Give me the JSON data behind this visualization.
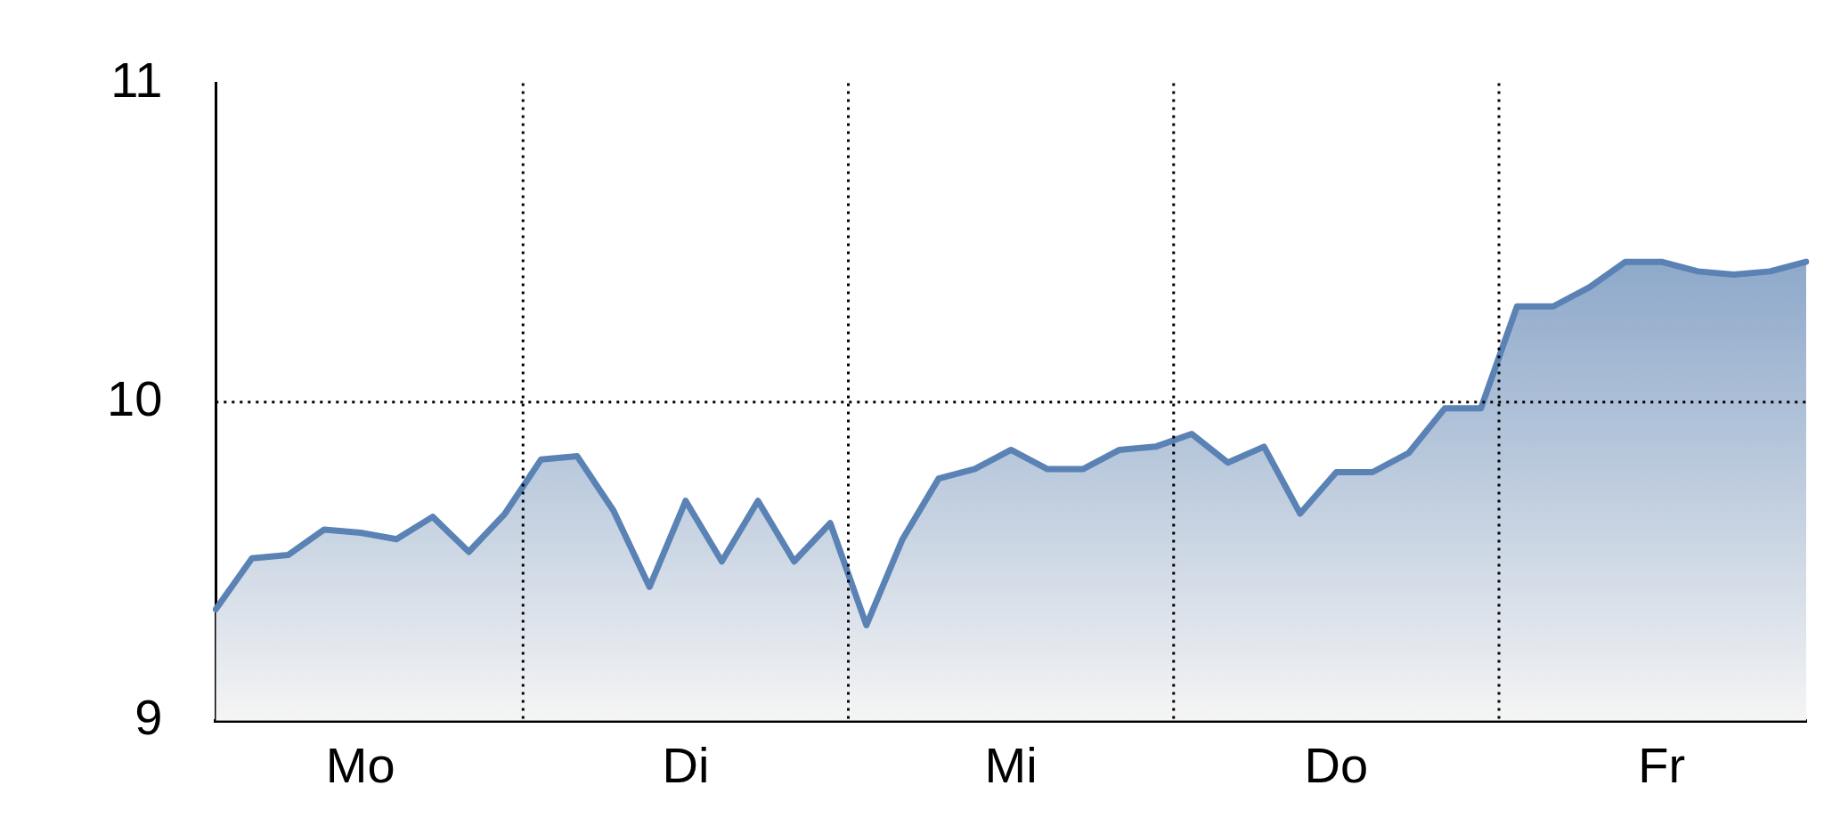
{
  "chart_data": {
    "type": "area",
    "categories": [
      null,
      null,
      null,
      null,
      "Mo",
      null,
      null,
      null,
      null,
      null,
      null,
      null,
      null,
      "Di",
      null,
      null,
      null,
      null,
      null,
      null,
      null,
      null,
      "Mi",
      null,
      null,
      null,
      null,
      null,
      null,
      null,
      null,
      "Do",
      null,
      null,
      null,
      null,
      null,
      null,
      null,
      null,
      "Fr",
      null,
      null,
      null,
      null
    ],
    "ylim": [
      9,
      11
    ],
    "yticks": [
      9,
      10,
      11
    ],
    "series": [
      {
        "color": "#5a82b4",
        "values": [
          9.35,
          9.51,
          9.52,
          9.6,
          9.59,
          9.57,
          9.64,
          9.53,
          9.65,
          9.82,
          9.83,
          9.66,
          9.42,
          9.69,
          9.5,
          9.69,
          9.5,
          9.62,
          9.3,
          9.57,
          9.76,
          9.79,
          9.85,
          9.79,
          9.79,
          9.85,
          9.86,
          9.9,
          9.81,
          9.86,
          9.65,
          9.78,
          9.78,
          9.84,
          9.98,
          9.98,
          10.3,
          10.3,
          10.36,
          10.44,
          10.44,
          10.41,
          10.4,
          10.41,
          10.44
        ]
      }
    ],
    "ref_lines": [
      {
        "axis": "y",
        "value": 10,
        "line_style": "dotted",
        "color": "#000000"
      }
    ],
    "grid": "x",
    "marker": "none"
  }
}
